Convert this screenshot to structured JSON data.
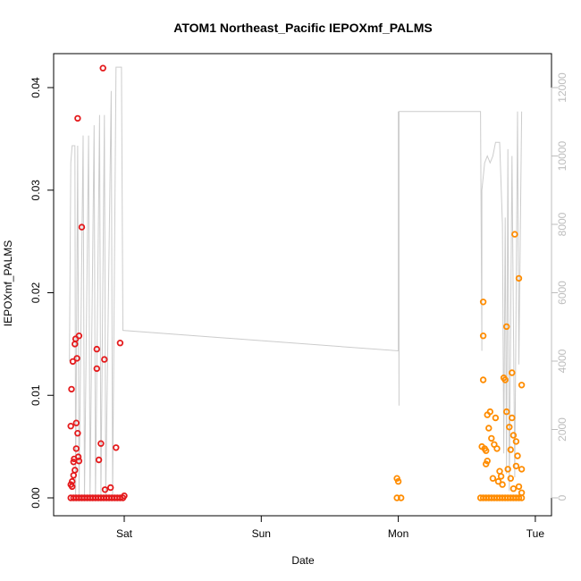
{
  "chart_data": {
    "type": "scatter",
    "title": "ATOM1 Northeast_Pacific IEPOXmf_PALMS",
    "xlabel": "Date",
    "ylabel": "IEPOXmf_PALMS",
    "x_unit": "days (0 = Sat 00:00)",
    "xlim": [
      -0.45,
      3.1
    ],
    "x_ticks": [
      {
        "value": 0,
        "label": "Sat"
      },
      {
        "value": 1,
        "label": "Sun"
      },
      {
        "value": 2,
        "label": "Mon"
      },
      {
        "value": 3,
        "label": "Tue"
      }
    ],
    "ylim": [
      0,
      0.042
    ],
    "y_ticks": [
      {
        "value": 0.0,
        "label": "0.00"
      },
      {
        "value": 0.01,
        "label": "0.01"
      },
      {
        "value": 0.02,
        "label": "0.02"
      },
      {
        "value": 0.03,
        "label": "0.03"
      },
      {
        "value": 0.04,
        "label": "0.04"
      }
    ],
    "y2lim": [
      0,
      12600
    ],
    "y2_ticks": [
      {
        "value": 0,
        "label": "0"
      },
      {
        "value": 2000,
        "label": "2000"
      },
      {
        "value": 4000,
        "label": "4000"
      },
      {
        "value": 6000,
        "label": "6000"
      },
      {
        "value": 8000,
        "label": "8000"
      },
      {
        "value": 10000,
        "label": "10000"
      },
      {
        "value": 12000,
        "label": "12000"
      }
    ],
    "grid": false,
    "series": [
      {
        "color": "#e41a1c",
        "marker": "circle-open",
        "points": [
          [
            -0.39,
            0.0013
          ],
          [
            -0.39,
            0.007
          ],
          [
            -0.385,
            0.0106
          ],
          [
            -0.38,
            0.0011
          ],
          [
            -0.38,
            0.0016
          ],
          [
            -0.375,
            0.0133
          ],
          [
            -0.37,
            0.0022
          ],
          [
            -0.37,
            0.0035
          ],
          [
            -0.365,
            0.0038
          ],
          [
            -0.36,
            0.015
          ],
          [
            -0.36,
            0.0027
          ],
          [
            -0.355,
            0.0155
          ],
          [
            -0.35,
            0.0073
          ],
          [
            -0.35,
            0.0048
          ],
          [
            -0.345,
            0.0136
          ],
          [
            -0.34,
            0.0063
          ],
          [
            -0.34,
            0.037
          ],
          [
            -0.335,
            0.004
          ],
          [
            -0.33,
            0.0158
          ],
          [
            -0.33,
            0.0036
          ],
          [
            -0.31,
            0.0264
          ],
          [
            -0.2,
            0.0145
          ],
          [
            -0.2,
            0.0126
          ],
          [
            -0.185,
            0.0037
          ],
          [
            -0.17,
            0.0053
          ],
          [
            -0.155,
            0.0419
          ],
          [
            -0.145,
            0.0135
          ],
          [
            -0.14,
            0.0008
          ],
          [
            -0.1,
            0.001
          ],
          [
            -0.06,
            0.0049
          ],
          [
            -0.03,
            0.0151
          ],
          [
            -0.39,
            0.0
          ],
          [
            -0.37,
            0.0
          ],
          [
            -0.35,
            0.0
          ],
          [
            -0.33,
            0.0
          ],
          [
            -0.31,
            0.0
          ],
          [
            -0.29,
            0.0
          ],
          [
            -0.27,
            0.0
          ],
          [
            -0.25,
            0.0
          ],
          [
            -0.23,
            0.0
          ],
          [
            -0.21,
            0.0
          ],
          [
            -0.19,
            0.0
          ],
          [
            -0.17,
            0.0
          ],
          [
            -0.15,
            0.0
          ],
          [
            -0.13,
            0.0
          ],
          [
            -0.11,
            0.0
          ],
          [
            -0.09,
            0.0
          ],
          [
            -0.07,
            0.0
          ],
          [
            -0.05,
            0.0
          ],
          [
            -0.03,
            0.0
          ],
          [
            -0.01,
            0.0
          ],
          [
            0.0,
            0.0002
          ]
        ]
      },
      {
        "color": "#ff8c00",
        "marker": "circle-open",
        "points": [
          [
            1.99,
            0.0019
          ],
          [
            2.0,
            0.0016
          ],
          [
            1.99,
            0.0
          ],
          [
            2.02,
            0.0
          ],
          [
            2.62,
            0.0191
          ],
          [
            2.62,
            0.0158
          ],
          [
            2.62,
            0.0115
          ],
          [
            2.61,
            0.005
          ],
          [
            2.63,
            0.0048
          ],
          [
            2.64,
            0.0046
          ],
          [
            2.64,
            0.0033
          ],
          [
            2.65,
            0.0036
          ],
          [
            2.65,
            0.0081
          ],
          [
            2.66,
            0.0068
          ],
          [
            2.67,
            0.0084
          ],
          [
            2.68,
            0.0058
          ],
          [
            2.69,
            0.0019
          ],
          [
            2.7,
            0.0052
          ],
          [
            2.71,
            0.0078
          ],
          [
            2.72,
            0.0048
          ],
          [
            2.73,
            0.0016
          ],
          [
            2.74,
            0.0026
          ],
          [
            2.75,
            0.0021
          ],
          [
            2.76,
            0.0013
          ],
          [
            2.77,
            0.0117
          ],
          [
            2.78,
            0.0115
          ],
          [
            2.79,
            0.0084
          ],
          [
            2.79,
            0.0167
          ],
          [
            2.8,
            0.0028
          ],
          [
            2.81,
            0.0069
          ],
          [
            2.82,
            0.0047
          ],
          [
            2.83,
            0.0122
          ],
          [
            2.83,
            0.0078
          ],
          [
            2.84,
            0.0061
          ],
          [
            2.85,
            0.0257
          ],
          [
            2.86,
            0.0055
          ],
          [
            2.87,
            0.0041
          ],
          [
            2.88,
            0.0214
          ],
          [
            2.9,
            0.011
          ],
          [
            2.9,
            0.0028
          ],
          [
            2.88,
            0.0011
          ],
          [
            2.86,
            0.0031
          ],
          [
            2.84,
            0.0009
          ],
          [
            2.82,
            0.0019
          ],
          [
            2.6,
            0.0
          ],
          [
            2.62,
            0.0
          ],
          [
            2.64,
            0.0
          ],
          [
            2.66,
            0.0
          ],
          [
            2.68,
            0.0
          ],
          [
            2.7,
            0.0
          ],
          [
            2.72,
            0.0
          ],
          [
            2.74,
            0.0
          ],
          [
            2.76,
            0.0
          ],
          [
            2.78,
            0.0
          ],
          [
            2.8,
            0.0
          ],
          [
            2.82,
            0.0
          ],
          [
            2.84,
            0.0
          ],
          [
            2.86,
            0.0
          ],
          [
            2.88,
            0.0
          ],
          [
            2.9,
            0.0
          ],
          [
            2.9,
            0.0005
          ]
        ]
      },
      {
        "color": "#cccccc",
        "type": "line",
        "axis": "right",
        "points": [
          [
            -0.4,
            4000
          ],
          [
            -0.39,
            9800
          ],
          [
            -0.38,
            10300
          ],
          [
            -0.36,
            10300
          ],
          [
            -0.355,
            0
          ],
          [
            -0.34,
            10300
          ],
          [
            -0.33,
            0
          ],
          [
            -0.3,
            10600
          ],
          [
            -0.29,
            0
          ],
          [
            -0.26,
            10600
          ],
          [
            -0.25,
            0
          ],
          [
            -0.22,
            10900
          ],
          [
            -0.21,
            0
          ],
          [
            -0.18,
            11200
          ],
          [
            -0.17,
            0
          ],
          [
            -0.145,
            11200
          ],
          [
            -0.135,
            0
          ],
          [
            -0.095,
            11900
          ],
          [
            -0.085,
            0
          ],
          [
            -0.06,
            12600
          ],
          [
            -0.02,
            12600
          ],
          [
            -0.01,
            4900
          ],
          [
            2.0,
            4300
          ],
          [
            2.0,
            11300
          ],
          [
            2.005,
            2700
          ],
          [
            2.005,
            11300
          ],
          [
            2.6,
            11300
          ],
          [
            2.61,
            4300
          ],
          [
            2.61,
            9000
          ],
          [
            2.63,
            9800
          ],
          [
            2.65,
            10000
          ],
          [
            2.67,
            9800
          ],
          [
            2.69,
            10000
          ],
          [
            2.71,
            10400
          ],
          [
            2.74,
            10400
          ],
          [
            2.76,
            8000
          ],
          [
            2.77,
            1300
          ],
          [
            2.78,
            8200
          ],
          [
            2.79,
            700
          ],
          [
            2.8,
            10200
          ],
          [
            2.81,
            200
          ],
          [
            2.83,
            10000
          ],
          [
            2.85,
            600
          ],
          [
            2.87,
            11300
          ],
          [
            2.88,
            3900
          ],
          [
            2.9,
            11300
          ]
        ]
      }
    ]
  }
}
